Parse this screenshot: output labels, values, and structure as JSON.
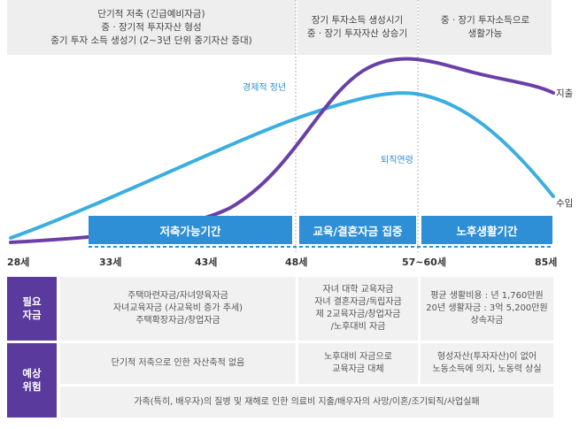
{
  "phases": [
    {
      "lines": [
        "단기적 저축 (긴급예비자금)",
        "중 · 장기적 투자자산 형성",
        "중기 투자 소득 생성기 (2~3년 단위 중기자산 증대)"
      ]
    },
    {
      "lines": [
        "장기 투자소득 생성시기",
        "중 · 장기 투자자산 상승기"
      ]
    },
    {
      "lines": [
        "중 · 장기 투자소득으로",
        "생활가능"
      ]
    }
  ],
  "chart_labels": {
    "peak": "경제적 정년",
    "retire": "퇴직연령",
    "expense": "지출",
    "income": "수입"
  },
  "bars": [
    "저축가능기간",
    "교육/결혼자금 집중",
    "노후생활기간"
  ],
  "ages": [
    "28세",
    "33세",
    "43세",
    "48세",
    "57~60세",
    "85세"
  ],
  "colors": {
    "income_line": "#3aaee0",
    "expense_line": "#6a3fa8",
    "bar": "#2e8fd6",
    "side": "#5a3a9c"
  },
  "chart_data": {
    "type": "line",
    "x": [
      "28세",
      "33세",
      "43세",
      "48세",
      "57~60세",
      "85세"
    ],
    "series": [
      {
        "name": "수입",
        "values": [
          12,
          38,
          85,
          115,
          140,
          35
        ]
      },
      {
        "name": "지출",
        "values": [
          5,
          12,
          30,
          115,
          185,
          150
        ]
      }
    ]
  },
  "table": {
    "row1": {
      "label": [
        "필요",
        "자금"
      ],
      "cells": [
        [
          "주택마련자금/자녀양육자금",
          "자녀교육자금 (사교육비 증가 추세)",
          "주택확장자금/창업자금"
        ],
        [
          "자녀 대학 교육자금",
          "자녀 결혼자금/독립자금",
          "제 2교육자금/창업자금",
          "/노후대비 자금"
        ],
        [
          "평균 생활비용 : 년 1,760만원",
          "20년 생활자금 : 3억 5,200만원",
          "상속자금"
        ]
      ]
    },
    "row2": {
      "label": [
        "예상",
        "위험"
      ],
      "cells": [
        [
          "단기적 저축으로 인한 자산축적 없음"
        ],
        [
          "노후대비 자금으로",
          "교육자금 대체"
        ],
        [
          "형성자산(투자자산)이 없어",
          "노동소득에 의지, 노동력 상실"
        ]
      ],
      "bottom": "가족(특히, 배우자)의 질병 및 재해로 인한 의료비 지출/배우자의 사망/이혼/조기퇴직/사업실패"
    }
  }
}
